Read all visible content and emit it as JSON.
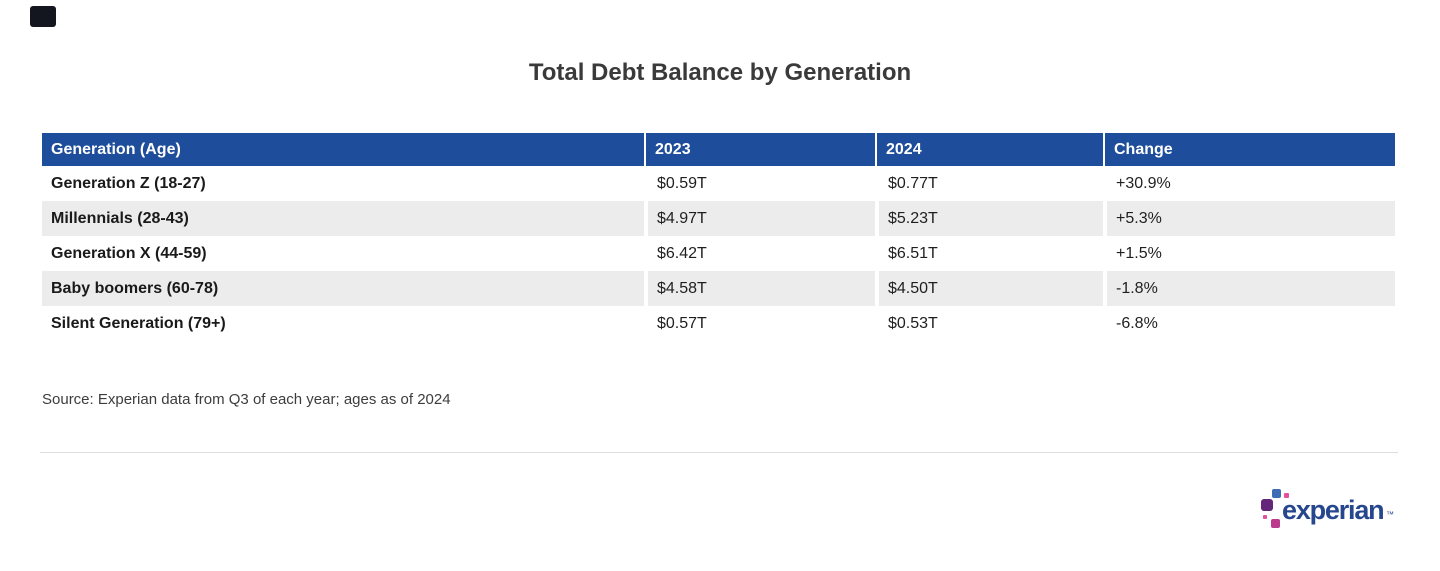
{
  "title": "Total Debt Balance by Generation",
  "chart_data": {
    "type": "table",
    "title": "Total Debt Balance by Generation",
    "columns": [
      "Generation (Age)",
      "2023",
      "2024",
      "Change"
    ],
    "rows": [
      [
        "Generation Z (18-27)",
        "$0.59T",
        "$0.77T",
        "+30.9%"
      ],
      [
        "Millennials (28-43)",
        "$4.97T",
        "$5.23T",
        "+5.3%"
      ],
      [
        "Generation X (44-59)",
        "$6.42T",
        "$6.51T",
        "+1.5%"
      ],
      [
        "Baby boomers (60-78)",
        "$4.58T",
        "$4.50T",
        "-1.8%"
      ],
      [
        "Silent Generation (79+)",
        "$0.57T",
        "$0.53T",
        "-6.8%"
      ]
    ],
    "categories": [
      "Generation Z (18-27)",
      "Millennials (28-43)",
      "Generation X (44-59)",
      "Baby boomers (60-78)",
      "Silent Generation (79+)"
    ],
    "series": [
      {
        "name": "2023",
        "unit": "trillion USD",
        "values": [
          0.59,
          4.97,
          6.42,
          4.58,
          0.57
        ]
      },
      {
        "name": "2024",
        "unit": "trillion USD",
        "values": [
          0.77,
          5.23,
          6.51,
          4.5,
          0.53
        ]
      },
      {
        "name": "Change",
        "unit": "percent",
        "values": [
          30.9,
          5.3,
          1.5,
          -1.8,
          -6.8
        ]
      }
    ],
    "layout": {
      "zebra_striping": true,
      "header_position": "top"
    }
  },
  "source_note": "Source: Experian data from Q3 of each year; ages as of 2024",
  "logo": {
    "wordmark": "experian",
    "trademark": "™"
  },
  "colors": {
    "header_bg": "#1E4D9B",
    "header_text": "#FFFFFF",
    "zebra_row": "#ECECEC",
    "row_text": "#1F1F1F",
    "title_color": "#3A3A3A",
    "source_color": "#3D3D3D",
    "divider": "#DEDEDE",
    "logo_navy": "#26478D",
    "logo_blue": "#3E6DB5",
    "logo_purple": "#632678",
    "logo_magenta": "#BB3A8E",
    "logo_pink": "#E5509C",
    "corner_mark": "#13161F"
  }
}
